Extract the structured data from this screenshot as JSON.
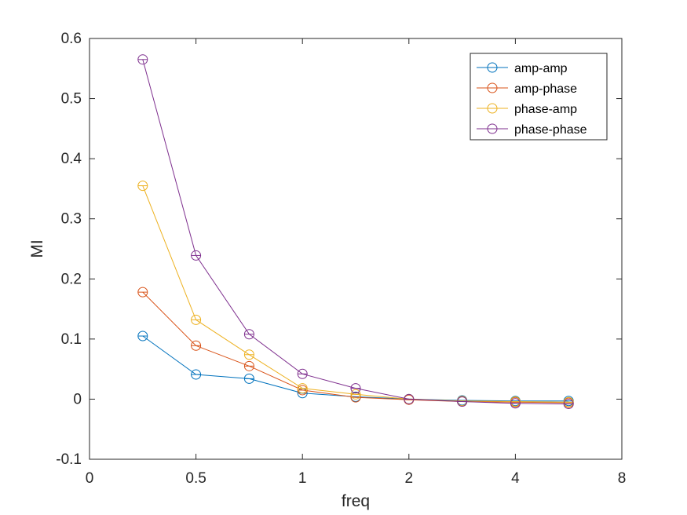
{
  "chart_data": {
    "type": "line",
    "xlabel": "freq",
    "ylabel": "MI",
    "ylim": [
      -0.1,
      0.6
    ],
    "x_tick_labels": [
      "0",
      "0.5",
      "1",
      "2",
      "4",
      "8"
    ],
    "y_ticks": [
      -0.1,
      0,
      0.1,
      0.2,
      0.3,
      0.4,
      0.5,
      0.6
    ],
    "y_tick_labels": [
      "-0.1",
      "0",
      "0.1",
      "0.2",
      "0.3",
      "0.4",
      "0.5",
      "0.6"
    ],
    "x": [
      0.25,
      0.5,
      0.75,
      1,
      1.5,
      2,
      3,
      4,
      6
    ],
    "series": [
      {
        "name": "amp-amp",
        "color": "#0072BD",
        "values": [
          0.105,
          0.041,
          0.034,
          0.01,
          0.004,
          0.0,
          -0.002,
          -0.003,
          -0.003
        ]
      },
      {
        "name": "amp-phase",
        "color": "#D95319",
        "values": [
          0.178,
          0.089,
          0.055,
          0.015,
          0.003,
          -0.001,
          -0.004,
          -0.005,
          -0.006
        ]
      },
      {
        "name": "phase-amp",
        "color": "#EDB120",
        "values": [
          0.355,
          0.132,
          0.074,
          0.018,
          0.008,
          0.0,
          -0.003,
          -0.004,
          -0.005
        ]
      },
      {
        "name": "phase-phase",
        "color": "#7E2F8E",
        "values": [
          0.565,
          0.239,
          0.108,
          0.042,
          0.018,
          0.0,
          -0.004,
          -0.007,
          -0.008
        ]
      }
    ],
    "grid": false,
    "legend_position": "top-right"
  }
}
